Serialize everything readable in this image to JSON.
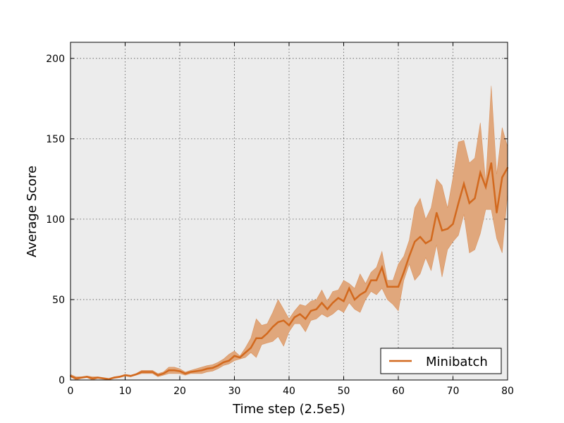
{
  "chart_data": {
    "type": "line",
    "title": "",
    "xlabel": "Time step (2.5e5)",
    "ylabel": "Average Score",
    "xlim": [
      0,
      80
    ],
    "ylim": [
      0,
      210
    ],
    "x_ticks": [
      0,
      10,
      20,
      30,
      40,
      50,
      60,
      70,
      80
    ],
    "y_ticks": [
      0,
      50,
      100,
      150,
      200
    ],
    "x_tick_labels": [
      "0",
      "10",
      "20",
      "30",
      "40",
      "50",
      "60",
      "70",
      "80"
    ],
    "y_tick_labels": [
      "0",
      "50",
      "100",
      "150",
      "200"
    ],
    "grid": true,
    "legend": {
      "position": "lower-right",
      "entries": [
        "Minibatch"
      ]
    },
    "colors": {
      "line": "#d2691e",
      "band": "#e0a77c",
      "plot_bg": "#ececec"
    },
    "series": [
      {
        "name": "Minibatch",
        "x": [
          0,
          1,
          2,
          3,
          4,
          5,
          6,
          7,
          8,
          9,
          10,
          11,
          12,
          13,
          14,
          15,
          16,
          17,
          18,
          19,
          20,
          21,
          22,
          23,
          24,
          25,
          26,
          27,
          28,
          29,
          30,
          31,
          32,
          33,
          34,
          35,
          36,
          37,
          38,
          39,
          40,
          41,
          42,
          43,
          44,
          45,
          46,
          47,
          48,
          49,
          50,
          51,
          52,
          53,
          54,
          55,
          56,
          57,
          58,
          59,
          60,
          61,
          62,
          63,
          64,
          65,
          66,
          67,
          68,
          69,
          70,
          71,
          72,
          73,
          74,
          75,
          76,
          77,
          78,
          79,
          80
        ],
        "mean": [
          2.5,
          1,
          1.5,
          2,
          1,
          1.5,
          1,
          0.5,
          1.5,
          2,
          3,
          2.5,
          3.5,
          5,
          5,
          5,
          3,
          4,
          6,
          6,
          5.5,
          4,
          5,
          5.5,
          6,
          7,
          7.5,
          9,
          11,
          12,
          15,
          14,
          17,
          20,
          26,
          26,
          29,
          33,
          36,
          37,
          34,
          39,
          41,
          38,
          43,
          44,
          48,
          44,
          48,
          51,
          49,
          57,
          50,
          53,
          55,
          62,
          62,
          70,
          58,
          58,
          58,
          67,
          77,
          86,
          89,
          85,
          87,
          104,
          93,
          94,
          97,
          110,
          122,
          110,
          113,
          129,
          120,
          135,
          104,
          126,
          132
        ],
        "upper": [
          3.5,
          2,
          2,
          2.5,
          2,
          2,
          1.5,
          1,
          2,
          2.5,
          3.5,
          3,
          4,
          6,
          6,
          6,
          4,
          5,
          8,
          8,
          7,
          5,
          6,
          7,
          8,
          9,
          9.5,
          11,
          13,
          16,
          18,
          15,
          20,
          26,
          38,
          34,
          35,
          42,
          50,
          44,
          38,
          43,
          47,
          46,
          49,
          50,
          56,
          49,
          55,
          56,
          62,
          60,
          57,
          66,
          60,
          67,
          70,
          80,
          62,
          62,
          72,
          77,
          87,
          107,
          113,
          100,
          107,
          125,
          121,
          107,
          126,
          148,
          149,
          135,
          138,
          160,
          123,
          183,
          128,
          157,
          145
        ],
        "lower": [
          2,
          0,
          1,
          1.5,
          0,
          1,
          0.5,
          0,
          1,
          1.5,
          2.5,
          2,
          3,
          4,
          4,
          4,
          2,
          3,
          4,
          4,
          4,
          3,
          4,
          4,
          4,
          5,
          5.5,
          7,
          9,
          10,
          12,
          13,
          14,
          17,
          14,
          22,
          23,
          24,
          27,
          21,
          30,
          35,
          35,
          30,
          37,
          38,
          41,
          39,
          41,
          44,
          42,
          48,
          44,
          42,
          50,
          55,
          53,
          57,
          50,
          47,
          43,
          62,
          72,
          62,
          66,
          76,
          68,
          84,
          64,
          81,
          86,
          90,
          103,
          79,
          81,
          91,
          106,
          106,
          88,
          79,
          116
        ]
      }
    ]
  }
}
